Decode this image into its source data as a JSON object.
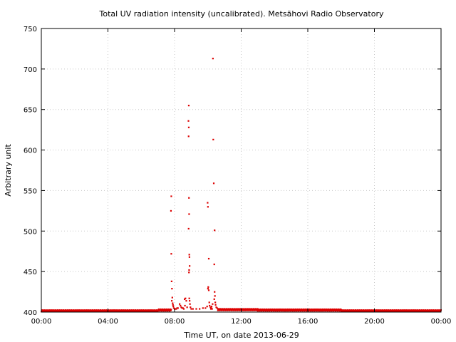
{
  "chart_data": {
    "type": "scatter",
    "title": "Total UV radiation intensity (uncalibrated). Metsähovi Radio Observatory",
    "xlabel": "Time UT, on date 2013-06-29",
    "ylabel": "Arbitrary unit",
    "xlim": [
      0,
      24
    ],
    "ylim": [
      400,
      750
    ],
    "x_ticks": [
      {
        "value": 0,
        "label": "00:00"
      },
      {
        "value": 4,
        "label": "04:00"
      },
      {
        "value": 8,
        "label": "08:00"
      },
      {
        "value": 12,
        "label": "12:00"
      },
      {
        "value": 16,
        "label": "16:00"
      },
      {
        "value": 20,
        "label": "20:00"
      },
      {
        "value": 24,
        "label": "00:00"
      }
    ],
    "y_ticks": [
      {
        "value": 400,
        "label": "400"
      },
      {
        "value": 450,
        "label": "450"
      },
      {
        "value": 500,
        "label": "500"
      },
      {
        "value": 550,
        "label": "550"
      },
      {
        "value": 600,
        "label": "600"
      },
      {
        "value": 650,
        "label": "650"
      },
      {
        "value": 700,
        "label": "700"
      },
      {
        "value": 750,
        "label": "750"
      }
    ],
    "grid": true,
    "marker_color": "#dd0000",
    "baseline": [
      {
        "from": 0,
        "to": 7,
        "value": 401.5
      },
      {
        "from": 7,
        "to": 7.8,
        "value": 402.5
      },
      {
        "from": 10.6,
        "to": 13,
        "value": 403
      },
      {
        "from": 13,
        "to": 18,
        "value": 402.5
      },
      {
        "from": 18,
        "to": 24,
        "value": 401.5
      }
    ],
    "points": [
      [
        7.8,
        543
      ],
      [
        7.78,
        525
      ],
      [
        7.8,
        472
      ],
      [
        7.82,
        438
      ],
      [
        7.84,
        429
      ],
      [
        7.86,
        418
      ],
      [
        7.83,
        414
      ],
      [
        7.88,
        411
      ],
      [
        7.9,
        409
      ],
      [
        7.92,
        407
      ],
      [
        7.95,
        405
      ],
      [
        8.0,
        404
      ],
      [
        8.05,
        404
      ],
      [
        8.1,
        404
      ],
      [
        8.15,
        405
      ],
      [
        8.2,
        405
      ],
      [
        8.3,
        410
      ],
      [
        8.35,
        408
      ],
      [
        8.4,
        406
      ],
      [
        8.45,
        405
      ],
      [
        8.5,
        405
      ],
      [
        8.55,
        404
      ],
      [
        8.6,
        416
      ],
      [
        8.65,
        417
      ],
      [
        8.7,
        414
      ],
      [
        8.62,
        408
      ],
      [
        8.75,
        406
      ],
      [
        8.85,
        655
      ],
      [
        8.83,
        636
      ],
      [
        8.85,
        628
      ],
      [
        8.84,
        617
      ],
      [
        8.86,
        541
      ],
      [
        8.87,
        521
      ],
      [
        8.84,
        503
      ],
      [
        8.88,
        471
      ],
      [
        8.89,
        468
      ],
      [
        8.9,
        457
      ],
      [
        8.86,
        449
      ],
      [
        8.87,
        452
      ],
      [
        8.88,
        417
      ],
      [
        8.9,
        414
      ],
      [
        8.92,
        410
      ],
      [
        8.95,
        406
      ],
      [
        9.0,
        404
      ],
      [
        9.1,
        404
      ],
      [
        9.3,
        404
      ],
      [
        9.5,
        404
      ],
      [
        9.7,
        405
      ],
      [
        9.85,
        405
      ],
      [
        9.95,
        407
      ],
      [
        10.0,
        429
      ],
      [
        10.02,
        431
      ],
      [
        10.05,
        427
      ],
      [
        9.98,
        535
      ],
      [
        10.0,
        530
      ],
      [
        10.05,
        466
      ],
      [
        10.08,
        412
      ],
      [
        10.1,
        408
      ],
      [
        10.15,
        406
      ],
      [
        10.2,
        405
      ],
      [
        10.3,
        713
      ],
      [
        10.32,
        613
      ],
      [
        10.35,
        559
      ],
      [
        10.4,
        501
      ],
      [
        10.38,
        459
      ],
      [
        10.4,
        425
      ],
      [
        10.42,
        420
      ],
      [
        10.38,
        416
      ],
      [
        10.44,
        412
      ],
      [
        10.46,
        409
      ],
      [
        10.5,
        406
      ],
      [
        10.55,
        405
      ],
      [
        10.6,
        404
      ],
      [
        10.7,
        404
      ],
      [
        10.8,
        403
      ],
      [
        10.25,
        404
      ],
      [
        10.28,
        410
      ],
      [
        10.22,
        407
      ],
      [
        10.18,
        404
      ]
    ]
  }
}
